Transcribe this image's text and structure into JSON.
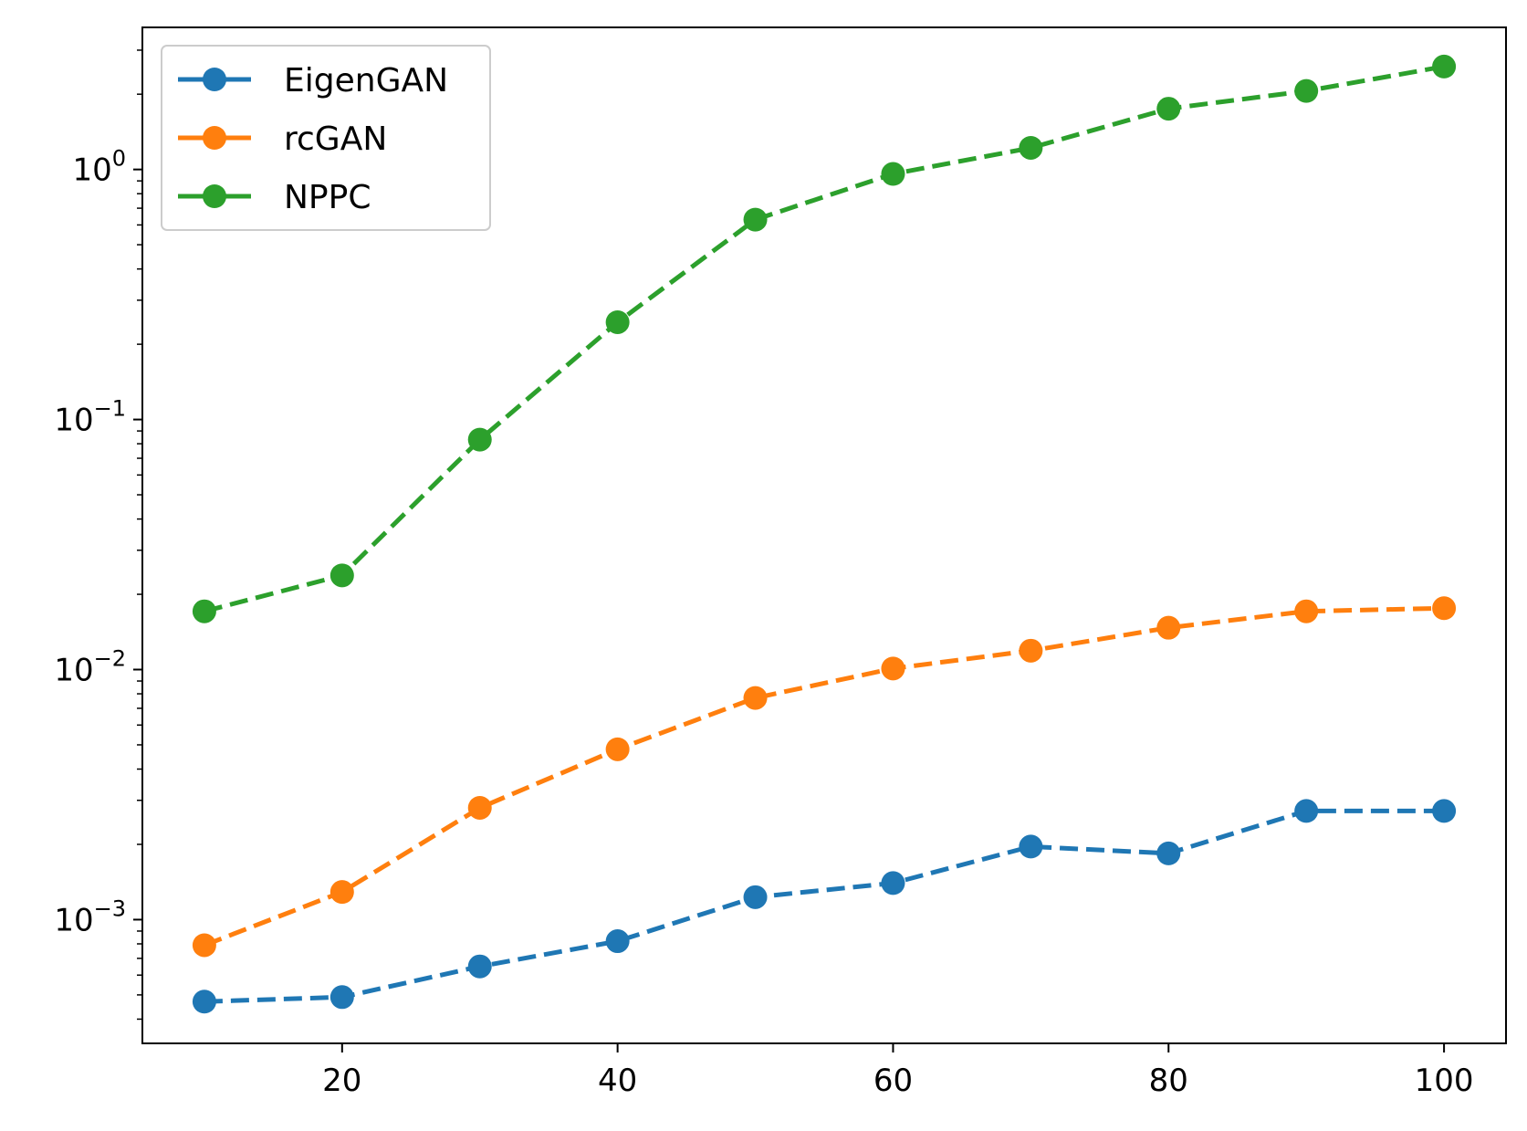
{
  "chart_data": {
    "type": "line",
    "title": "",
    "xlabel": "",
    "ylabel": "",
    "x": [
      10,
      20,
      30,
      40,
      50,
      60,
      70,
      80,
      90,
      100
    ],
    "xlim": [
      5.5,
      104.5
    ],
    "ylim": [
      0.00032,
      3.7
    ],
    "yscale": "log",
    "grid": false,
    "legend_position": "top-left",
    "x_ticks": [
      {
        "value": 20,
        "label": "20"
      },
      {
        "value": 40,
        "label": "40"
      },
      {
        "value": 60,
        "label": "60"
      },
      {
        "value": 80,
        "label": "80"
      },
      {
        "value": 100,
        "label": "100"
      }
    ],
    "y_ticks": [
      {
        "value": 0.001,
        "base": "10",
        "exp": "−3"
      },
      {
        "value": 0.01,
        "base": "10",
        "exp": "−2"
      },
      {
        "value": 0.1,
        "base": "10",
        "exp": "−1"
      },
      {
        "value": 1,
        "base": "10",
        "exp": "0"
      }
    ],
    "series": [
      {
        "name": "EigenGAN",
        "color": "#1f77b4",
        "values": [
          0.00047,
          0.00049,
          0.00065,
          0.00082,
          0.00123,
          0.0014,
          0.00196,
          0.00184,
          0.00272,
          0.00272
        ]
      },
      {
        "name": "rcGAN",
        "color": "#ff7f0e",
        "values": [
          0.00079,
          0.00129,
          0.0028,
          0.0048,
          0.0077,
          0.0101,
          0.0119,
          0.0147,
          0.0171,
          0.0176
        ]
      },
      {
        "name": "NPPC",
        "color": "#2ca02c",
        "values": [
          0.0171,
          0.0238,
          0.0831,
          0.245,
          0.63,
          0.96,
          1.22,
          1.75,
          2.06,
          2.58
        ]
      }
    ]
  }
}
